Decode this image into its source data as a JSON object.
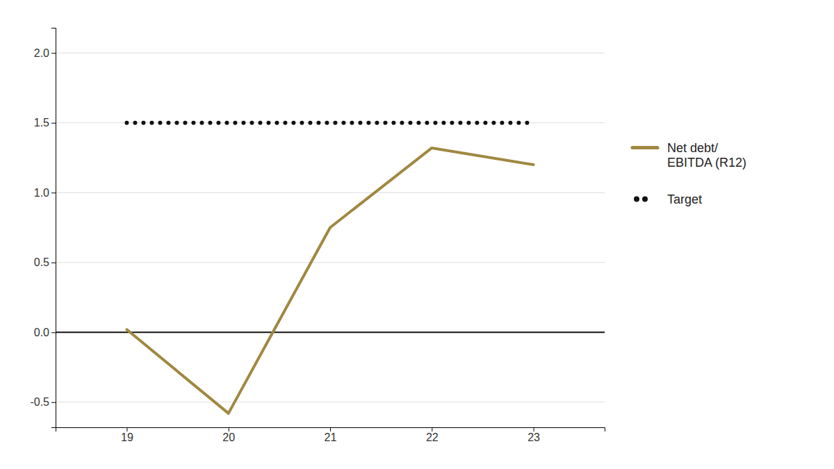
{
  "chart_data": {
    "type": "line",
    "x": [
      19,
      20,
      21,
      22,
      23
    ],
    "series": [
      {
        "name": "Net debt/\nEBITDA (R12)",
        "color": "#a08840",
        "values": [
          0.02,
          -0.58,
          0.75,
          1.32,
          1.2
        ],
        "line_style": "solid"
      },
      {
        "name": "Target",
        "color": "#111111",
        "values": [
          1.5,
          1.5,
          1.5,
          1.5,
          1.5
        ],
        "line_style": "dotted"
      }
    ],
    "xlim": [
      18.3,
      23.7
    ],
    "xticks": [
      19,
      20,
      21,
      22,
      23
    ],
    "ylim": [
      -0.68,
      2.18
    ],
    "yticks": [
      -0.5,
      {
        "value": 0,
        "label": "0.0"
      },
      0.5,
      {
        "value": 1,
        "label": "1.0"
      },
      1.5,
      {
        "value": 2,
        "label": "2.0"
      }
    ],
    "grid": true,
    "legend": "right"
  }
}
